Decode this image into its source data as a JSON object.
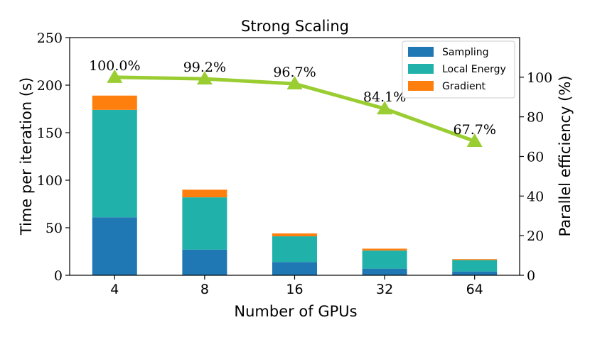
{
  "chart_data": {
    "type": "bar",
    "title": "Strong Scaling",
    "xlabel": "Number of GPUs",
    "ylabel": "Time per iteration (s)",
    "y2label": "Parallel efficiency (%)",
    "categories": [
      "4",
      "8",
      "16",
      "32",
      "64"
    ],
    "ylim": [
      0,
      250
    ],
    "y2lim": [
      0,
      120
    ],
    "yticks": [
      0,
      50,
      100,
      150,
      200,
      250
    ],
    "y2ticks": [
      0,
      20,
      40,
      60,
      80,
      100
    ],
    "stacked": true,
    "legend_position": "top-right",
    "series": [
      {
        "name": "Sampling",
        "color": "#1f77b4",
        "values": [
          61,
          27,
          14,
          7,
          4
        ]
      },
      {
        "name": "Local Energy",
        "color": "#20b2aa",
        "values": [
          113,
          55,
          27,
          19,
          12
        ]
      },
      {
        "name": "Gradient",
        "color": "#ff7f0e",
        "values": [
          15,
          8,
          3,
          2,
          1
        ]
      }
    ],
    "line_series": {
      "color": "#9acd32",
      "values": [
        100.0,
        99.2,
        96.7,
        84.1,
        67.7
      ],
      "labels": [
        "100.0%",
        "99.2%",
        "96.7%",
        "84.1%",
        "67.7%"
      ]
    }
  }
}
